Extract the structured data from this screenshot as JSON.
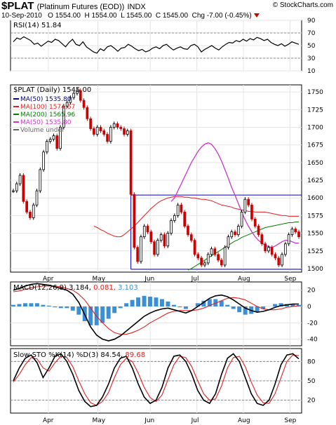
{
  "header": {
    "symbol": "$PLAT",
    "description": "(Platinum Futures (EOD))",
    "exchange": "INDX",
    "brand": "© StockCharts.com",
    "date": "10-Sep-2010",
    "open_label": "O",
    "open": "1554.00",
    "high_label": "H",
    "high": "1554.00",
    "low_label": "L",
    "low": "1545.00",
    "close_label": "C",
    "close": "1545.00",
    "change_label": "Chg",
    "change": "-7.00 (-0.45%)",
    "down_color": "#cc0000"
  },
  "chart_data": [
    {
      "type": "line",
      "name": "rsi",
      "label": "RSI(14) 51.84",
      "ylim": [
        10,
        90
      ],
      "yticks": [
        10,
        30,
        50,
        70,
        90
      ],
      "reference_lines": [
        30,
        70
      ],
      "values": [
        56,
        62,
        60,
        64,
        61,
        58,
        52,
        54,
        49,
        53,
        57,
        55,
        60,
        58,
        53,
        48,
        55,
        60,
        52,
        50,
        56,
        48,
        44,
        40,
        38,
        45,
        42,
        48,
        50,
        46,
        41,
        46,
        47,
        52,
        49,
        45,
        42,
        44,
        40,
        42,
        46,
        48,
        45,
        50,
        52,
        47,
        43,
        46,
        48,
        45,
        44,
        50,
        52,
        48,
        40,
        44,
        47,
        50,
        46,
        43,
        48,
        52,
        55,
        54,
        58,
        56,
        60,
        57,
        61,
        59,
        63,
        61,
        58,
        60,
        55,
        52,
        50,
        53,
        49,
        52,
        56,
        54,
        52
      ]
    },
    {
      "type": "candlestick",
      "name": "price",
      "label": "$PLAT (Daily) 1545.00",
      "ylim": [
        1495,
        1760
      ],
      "yticks": [
        1500,
        1525,
        1550,
        1575,
        1600,
        1625,
        1650,
        1675,
        1700,
        1725,
        1750
      ],
      "x_months": [
        {
          "label": "Apr",
          "pos": 0.13
        },
        {
          "label": "May",
          "pos": 0.3
        },
        {
          "label": "Jun",
          "pos": 0.48
        },
        {
          "label": "Jul",
          "pos": 0.64
        },
        {
          "label": "Aug",
          "pos": 0.8
        },
        {
          "label": "Sep",
          "pos": 0.96
        }
      ],
      "legend": [
        {
          "label": "MA(50) 1535.80",
          "color": "#000080"
        },
        {
          "label": "MA(100) 1574.67",
          "color": "#e02020"
        },
        {
          "label": "MA(200) 1565.96",
          "color": "#008000"
        },
        {
          "label": "MA(50) 1535.80",
          "color": "#cc33cc"
        },
        {
          "label": "Volume undef",
          "color": "#666666"
        }
      ],
      "channel": {
        "upper": 1604,
        "lower": 1499,
        "start_index": 35
      },
      "ohlc_close": [
        1610,
        1620,
        1632,
        1595,
        1580,
        1572,
        1590,
        1610,
        1640,
        1665,
        1680,
        1683,
        1688,
        1670,
        1700,
        1730,
        1735,
        1742,
        1748,
        1752,
        1738,
        1728,
        1712,
        1698,
        1690,
        1700,
        1695,
        1690,
        1680,
        1700,
        1705,
        1700,
        1698,
        1690,
        1695,
        1605,
        1530,
        1510,
        1545,
        1560,
        1552,
        1538,
        1520,
        1540,
        1548,
        1532,
        1550,
        1568,
        1575,
        1590,
        1580,
        1560,
        1548,
        1540,
        1520,
        1515,
        1505,
        1508,
        1520,
        1528,
        1520,
        1512,
        1505,
        1530,
        1545,
        1552,
        1548,
        1560,
        1580,
        1598,
        1590,
        1570,
        1560,
        1548,
        1535,
        1525,
        1530,
        1520,
        1515,
        1505,
        1520,
        1535,
        1548,
        1556,
        1552,
        1545
      ],
      "ma100": [
        1560,
        1558,
        1555,
        1553,
        1550,
        1548,
        1546,
        1545,
        1545,
        1548,
        1552,
        1556,
        1560,
        1565,
        1570,
        1575,
        1580,
        1585,
        1589,
        1593,
        1596,
        1598,
        1600,
        1601,
        1602,
        1602,
        1602,
        1601,
        1601,
        1600,
        1600,
        1599,
        1598,
        1598,
        1597,
        1596,
        1594,
        1592,
        1590,
        1589,
        1588,
        1587,
        1585,
        1584,
        1583,
        1582,
        1581,
        1581,
        1580,
        1580,
        1580,
        1580,
        1579,
        1578,
        1577,
        1576,
        1575,
        1575,
        1574,
        1574,
        1574,
        1574
      ],
      "ma200": [
        1498,
        1500,
        1503,
        1506,
        1509,
        1512,
        1515,
        1518,
        1521,
        1524,
        1527,
        1530,
        1533,
        1536,
        1539,
        1541,
        1544,
        1546,
        1548,
        1550,
        1552,
        1554,
        1556,
        1558,
        1559,
        1560,
        1561,
        1562,
        1563,
        1564,
        1565,
        1565,
        1566,
        1566
      ],
      "ma50": [
        1595,
        1600,
        1610,
        1620,
        1630,
        1640,
        1650,
        1658,
        1666,
        1672,
        1676,
        1678,
        1676,
        1670,
        1662,
        1652,
        1640,
        1628,
        1615,
        1604,
        1592,
        1580,
        1569,
        1560,
        1552,
        1545,
        1540,
        1536,
        1533,
        1531,
        1530,
        1532,
        1535,
        1538,
        1540,
        1540,
        1538,
        1536,
        1536
      ]
    },
    {
      "type": "line",
      "name": "macd",
      "label_prefix": "MACD(12,26,9)",
      "macd_value": "3.184",
      "signal_value": "0.081",
      "histogram_value": "3.103",
      "ylim": [
        -48,
        30
      ],
      "yticks": [
        -40,
        -20,
        0,
        20
      ],
      "macd": [
        20,
        22,
        25,
        27,
        28,
        27,
        26,
        24,
        22,
        20,
        15,
        5,
        -10,
        -25,
        -35,
        -40,
        -42,
        -40,
        -36,
        -30,
        -24,
        -18,
        -12,
        -8,
        -5,
        -3,
        -2,
        -4,
        -6,
        -8,
        -5,
        0,
        5,
        10,
        13,
        14,
        12,
        8,
        3,
        -2,
        -5,
        -7,
        -6,
        -4,
        -1,
        1,
        2,
        3,
        3
      ],
      "signal": [
        18,
        19,
        21,
        23,
        24,
        25,
        25,
        25,
        24,
        22,
        20,
        15,
        8,
        -2,
        -12,
        -20,
        -27,
        -32,
        -34,
        -34,
        -32,
        -29,
        -25,
        -20,
        -16,
        -12,
        -8,
        -6,
        -5,
        -5,
        -5,
        -4,
        -2,
        1,
        4,
        7,
        10,
        11,
        10,
        8,
        4,
        0,
        -3,
        -4,
        -4,
        -3,
        -1,
        0,
        1
      ],
      "histogram": [
        2,
        3,
        4,
        4,
        4,
        2,
        1,
        -1,
        -2,
        -2,
        -5,
        -10,
        -18,
        -23,
        -23,
        -20,
        -15,
        -8,
        -2,
        4,
        8,
        11,
        13,
        12,
        11,
        9,
        6,
        2,
        -1,
        -3,
        0,
        4,
        7,
        9,
        9,
        7,
        2,
        -3,
        -7,
        -10,
        -9,
        -7,
        -3,
        0,
        3,
        4,
        3,
        3,
        2
      ]
    },
    {
      "type": "line",
      "name": "slow_sto",
      "label_prefix": "Slow STO %K(14) %D(3)",
      "k_value": "84.54",
      "d_value": "89.68",
      "ylim": [
        0,
        100
      ],
      "yticks": [
        20,
        50,
        80
      ],
      "reference_lines": [
        20,
        50,
        80
      ],
      "k": [
        50,
        70,
        85,
        90,
        78,
        55,
        70,
        88,
        92,
        80,
        60,
        35,
        18,
        10,
        12,
        25,
        45,
        70,
        85,
        88,
        70,
        45,
        25,
        15,
        20,
        40,
        70,
        88,
        90,
        80,
        60,
        35,
        20,
        15,
        30,
        60,
        85,
        92,
        80,
        55,
        30,
        15,
        12,
        20,
        45,
        75,
        90,
        92,
        84
      ],
      "d": [
        48,
        60,
        75,
        86,
        84,
        70,
        65,
        78,
        88,
        86,
        72,
        50,
        30,
        16,
        12,
        18,
        32,
        55,
        75,
        85,
        80,
        62,
        40,
        24,
        18,
        28,
        52,
        75,
        88,
        86,
        72,
        50,
        30,
        20,
        22,
        42,
        70,
        86,
        88,
        72,
        48,
        28,
        16,
        15,
        30,
        55,
        80,
        90,
        89
      ]
    }
  ]
}
